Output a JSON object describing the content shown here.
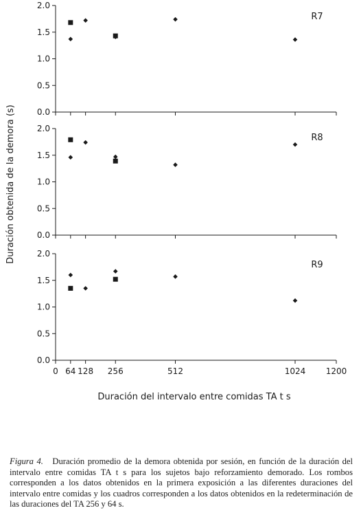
{
  "chart_data": {
    "type": "scatter",
    "xlabel": "Duración del intervalo entre comidas TA t s",
    "ylabel": "Duración obtenida de la demora (s)",
    "xlim": [
      0,
      1200
    ],
    "x_ticks": [
      0,
      64,
      128,
      256,
      512,
      1024,
      1200
    ],
    "ylim": [
      0,
      2.0
    ],
    "y_ticks": [
      "0.0",
      "0.5",
      "1.0",
      "1.5",
      "2.0"
    ],
    "grid": false,
    "panels": [
      {
        "label": "R7",
        "series": [
          {
            "marker": "diamond",
            "points": [
              {
                "x": 64,
                "y": 1.37
              },
              {
                "x": 128,
                "y": 1.72
              },
              {
                "x": 256,
                "y": 1.41
              },
              {
                "x": 512,
                "y": 1.74
              },
              {
                "x": 1024,
                "y": 1.36
              }
            ]
          },
          {
            "marker": "square",
            "points": [
              {
                "x": 64,
                "y": 1.68
              },
              {
                "x": 256,
                "y": 1.43
              }
            ]
          }
        ]
      },
      {
        "label": "R8",
        "series": [
          {
            "marker": "diamond",
            "points": [
              {
                "x": 64,
                "y": 1.46
              },
              {
                "x": 128,
                "y": 1.74
              },
              {
                "x": 256,
                "y": 1.47
              },
              {
                "x": 512,
                "y": 1.32
              },
              {
                "x": 1024,
                "y": 1.7
              }
            ]
          },
          {
            "marker": "square",
            "points": [
              {
                "x": 64,
                "y": 1.79
              },
              {
                "x": 256,
                "y": 1.39
              }
            ]
          }
        ]
      },
      {
        "label": "R9",
        "series": [
          {
            "marker": "diamond",
            "points": [
              {
                "x": 64,
                "y": 1.6
              },
              {
                "x": 128,
                "y": 1.35
              },
              {
                "x": 256,
                "y": 1.67
              },
              {
                "x": 512,
                "y": 1.57
              },
              {
                "x": 1024,
                "y": 1.12
              }
            ]
          },
          {
            "marker": "square",
            "points": [
              {
                "x": 64,
                "y": 1.35
              },
              {
                "x": 256,
                "y": 1.52
              }
            ]
          }
        ]
      }
    ]
  },
  "caption": {
    "figure_label": "Figura 4.",
    "text": "Duración promedio de la demora obtenida por sesión, en función de la duración del intervalo entre comidas TA t s para los sujetos bajo reforzamiento demorado. Los rombos corresponden a los datos obtenidos en la primera exposición a las diferentes duraciones del intervalo entre comidas y los cuadros corresponden a los datos obtenidos en la redeterminación de las duraciones del TA 256 y 64 s."
  }
}
